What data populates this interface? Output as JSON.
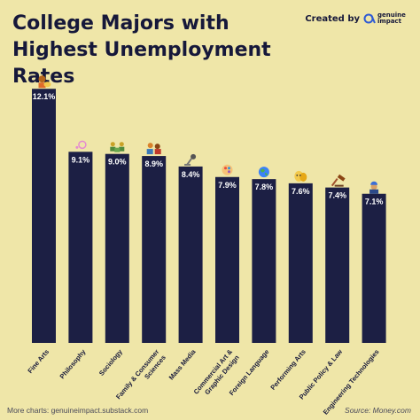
{
  "header": {
    "title": "College Majors with Highest Unemployment Rates",
    "created_by": "Created by",
    "brand_line1": "genuine",
    "brand_line2": "impact"
  },
  "footer": {
    "more_charts": "More charts: genuineimpact.substack.com",
    "source": "Source: Money.com"
  },
  "colors": {
    "background": "#efe6a8",
    "bar": "#1c1f44",
    "label_text": "#ffffff",
    "brand_blue": "#2f5bd3"
  },
  "chart_data": {
    "type": "bar",
    "title": "College Majors with Highest Unemployment Rates",
    "xlabel": "",
    "ylabel": "",
    "unit": "%",
    "ylim": [
      0,
      13
    ],
    "grid": false,
    "legend": "none",
    "categories": [
      "Fine Arts",
      "Philosophy",
      "Sociology",
      "Family & Consumer Sciences",
      "Mass Media",
      "Commercial Art & Graphic Design",
      "Foreign Language",
      "Performing Arts",
      "Public Policy & Law",
      "Engineering Technologies"
    ],
    "category_label_lines": [
      [
        "Fine Arts"
      ],
      [
        "Philosophy"
      ],
      [
        "Sociology"
      ],
      [
        "Family & Consumer",
        "Sciences"
      ],
      [
        "Mass Media"
      ],
      [
        "Commercial Art &",
        "Graphic Design"
      ],
      [
        "Foreign Language"
      ],
      [
        "Performing Arts"
      ],
      [
        "Public Policy & Law"
      ],
      [
        "Engineering Technologies"
      ]
    ],
    "values": [
      12.1,
      9.1,
      9.0,
      8.9,
      8.4,
      7.9,
      7.8,
      7.6,
      7.4,
      7.1
    ],
    "value_labels": [
      "12.1%",
      "9.1%",
      "9.0%",
      "8.9%",
      "8.4%",
      "7.9%",
      "7.8%",
      "7.6%",
      "7.4%",
      "7.1%"
    ],
    "icons": [
      "artist-icon",
      "thinking-icon",
      "people-group-icon",
      "family-icon",
      "microphone-icon",
      "color-palette-icon",
      "globe-icon",
      "theater-masks-icon",
      "gavel-icon",
      "engineer-icon"
    ]
  }
}
